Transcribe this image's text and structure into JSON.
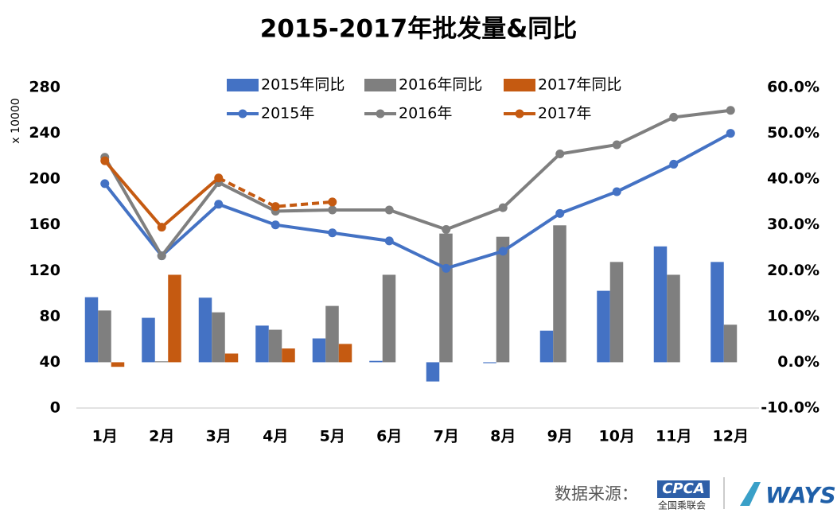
{
  "chart_data": {
    "type": "bar-line",
    "title": "2015-2017年批发量&同比",
    "y_unit_label": "x 10000",
    "categories": [
      "1月",
      "2月",
      "3月",
      "4月",
      "5月",
      "6月",
      "7月",
      "8月",
      "9月",
      "10月",
      "11月",
      "12月"
    ],
    "series": [
      {
        "name": "2015年同比",
        "type": "bar",
        "axis": "y2",
        "color": "#4472c4",
        "values": [
          14.2,
          9.7,
          14.1,
          8.0,
          5.2,
          0.3,
          -4.2,
          -0.2,
          6.9,
          15.6,
          25.3,
          21.9
        ]
      },
      {
        "name": "2016年同比",
        "type": "bar",
        "axis": "y2",
        "color": "#7f7f7f",
        "values": [
          11.3,
          0.2,
          10.9,
          7.1,
          12.3,
          19.1,
          28.1,
          27.4,
          29.9,
          21.9,
          19.1,
          8.2
        ]
      },
      {
        "name": "2017年同比",
        "type": "bar",
        "axis": "y2",
        "color": "#c55a11",
        "values": [
          -1.0,
          19.1,
          1.9,
          3.0,
          4.0,
          null,
          null,
          null,
          null,
          null,
          null,
          null
        ]
      },
      {
        "name": "2015年",
        "type": "line",
        "color": "#4472c4",
        "values": [
          196,
          133,
          178,
          160,
          153,
          146,
          122,
          137,
          170,
          189,
          213,
          240
        ]
      },
      {
        "name": "2016年",
        "type": "line",
        "color": "#7f7f7f",
        "values": [
          219,
          133,
          197,
          172,
          173,
          173,
          156,
          175,
          222,
          230,
          254,
          260
        ]
      },
      {
        "name": "2017年",
        "type": "line",
        "color": "#c55a11",
        "dashed_from": 2,
        "values": [
          216,
          158,
          201,
          176,
          180,
          null,
          null,
          null,
          null,
          null,
          null,
          null
        ]
      }
    ],
    "ylim": [
      0,
      280
    ],
    "yticks": [
      0,
      40,
      80,
      120,
      160,
      200,
      240,
      280
    ],
    "y2lim": [
      -10,
      60
    ],
    "y2ticks": [
      {
        "value": -10,
        "label": "-10.0%"
      },
      {
        "value": 0,
        "label": "0.0%"
      },
      {
        "value": 10,
        "label": "10.0%"
      },
      {
        "value": 20,
        "label": "20.0%"
      },
      {
        "value": 30,
        "label": "30.0%"
      },
      {
        "value": 40,
        "label": "40.0%"
      },
      {
        "value": 50,
        "label": "50.0%"
      },
      {
        "value": 60,
        "label": "60.0%"
      }
    ],
    "grid": false
  },
  "footer": {
    "source_label": "数据来源：",
    "logo_main": "CPCA",
    "logo_sub": "全国乘联会",
    "logo_brand": "WAYS"
  }
}
